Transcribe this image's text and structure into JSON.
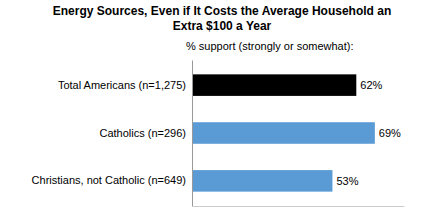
{
  "chart_data": {
    "type": "bar",
    "orientation": "horizontal",
    "title": "Energy Sources, Even if It Costs the Average Household an\nExtra $100 a Year",
    "subtitle": "% support (strongly or somewhat):",
    "categories": [
      "Total Americans (n=1,275)",
      "Catholics (n=296)",
      "Christians, not Catholic (n=649)"
    ],
    "values": [
      62,
      69,
      53
    ],
    "value_labels": [
      "62%",
      "69%",
      "53%"
    ],
    "colors": [
      "#000000",
      "#5B9BD5",
      "#5B9BD5"
    ],
    "xlim": [
      0,
      80
    ],
    "data_labels": true,
    "tick_labels": "y",
    "grid": false
  }
}
